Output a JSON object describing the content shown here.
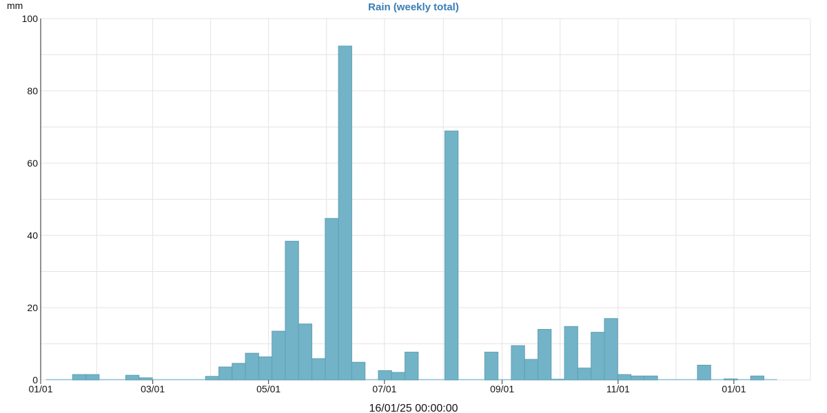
{
  "chart_data": {
    "type": "bar",
    "title": "Rain (weekly total)",
    "ylabel": "mm",
    "xlabel": "16/01/25 00:00:00",
    "ylim": [
      0,
      100
    ],
    "y_ticks": [
      0,
      20,
      40,
      60,
      80,
      100
    ],
    "x_ticks": [
      "01/01",
      "03/01",
      "05/01",
      "07/01",
      "09/01",
      "11/01",
      "01/01"
    ],
    "x_tick_weeks": [
      0,
      8.43,
      17.14,
      25.86,
      34.71,
      43.43,
      52.14
    ],
    "grid": true,
    "bar_color": "#73b3c7",
    "bar_edge_color": "#5f9fb3",
    "baseline_color": "#8fc1d1",
    "title_color": "#3a7db5",
    "weeks_shown": 55,
    "week_start": 0.4,
    "values": [
      0,
      0,
      1.5,
      1.5,
      0,
      0,
      1.3,
      0.6,
      0,
      0,
      0,
      0,
      1.0,
      3.6,
      4.6,
      7.4,
      6.4,
      13.5,
      38.4,
      15.5,
      5.9,
      44.7,
      92.4,
      4.9,
      0,
      2.6,
      2.1,
      7.7,
      0,
      0,
      68.9,
      0,
      0,
      7.7,
      0,
      9.5,
      5.7,
      14.0,
      0.2,
      14.8,
      3.3,
      13.2,
      17.0,
      1.5,
      1.1,
      1.1,
      0,
      0,
      0,
      4.1,
      0,
      0.3,
      0,
      1.1,
      0
    ]
  }
}
